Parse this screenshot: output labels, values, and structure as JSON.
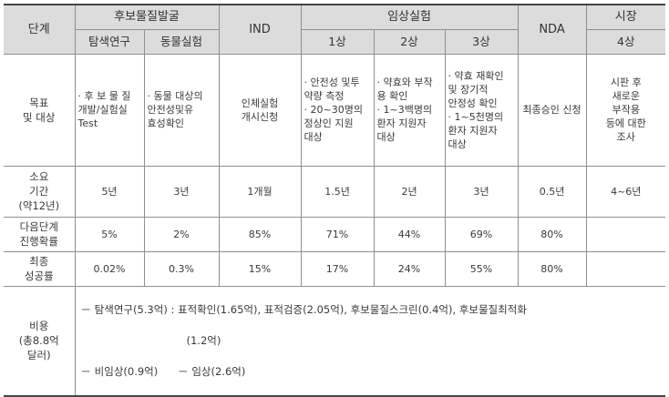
{
  "header": {
    "stage": "단계",
    "candidate_group": "후보물질발굴",
    "exploration": "탐색연구",
    "animal": "동물실험",
    "ind": "IND",
    "clinical_group": "임상실험",
    "phase1": "1상",
    "phase2": "2상",
    "phase3": "3상",
    "nda": "NDA",
    "market_group": "시장",
    "phase4": "4상"
  },
  "rows": {
    "goal": {
      "label": "목표\n및 대상",
      "exploration": "· 후 보 물 질\n개발/실험실\nTest",
      "animal": "· 동물 대상의\n안전성및유\n효성확인",
      "ind": "인체실험\n개시신청",
      "phase1": "· 안전성 및투\n약량 측정\n· 20~30명의\n정상인 지원\n대상",
      "phase2": "· 약효와 부작\n용 확인\n· 1~3백명의\n환자 지원자\n대상",
      "phase3": "· 약효 재확인\n및 장기적\n안정성 확인\n· 1~5천명의\n환자 지원자\n대상",
      "nda": "최종승인 신청",
      "phase4": "시판 후\n새로운\n부작용\n등에 대한\n조사"
    },
    "duration": {
      "label": "소요\n기간\n(약12년)",
      "exploration": "5년",
      "animal": "3년",
      "ind": "1개월",
      "phase1": "1.5년",
      "phase2": "2년",
      "phase3": "3년",
      "nda": "0.5년",
      "phase4": "4~6년"
    },
    "next_prob": {
      "label": "다음단계\n진행확률",
      "exploration": "5%",
      "animal": "2%",
      "ind": "85%",
      "phase1": "71%",
      "phase2": "44%",
      "phase3": "69%",
      "nda": "80%",
      "phase4": ""
    },
    "final_success": {
      "label": "최종\n성공률",
      "exploration": "0.02%",
      "animal": "0.3%",
      "ind": "15%",
      "phase1": "17%",
      "phase2": "24%",
      "phase3": "55%",
      "nda": "80%",
      "phase4": ""
    },
    "cost": {
      "label": "비용\n(총8.8억\n달러)",
      "line1": "－ 탐색연구(5.3억) : 표적확인(1.65억), 표적검증(2.05억), 후보물질스크린(0.4억), 후보물질최적화",
      "line2": "(1.2억)",
      "line3": "－ 비임상(0.9억)      － 임상(2.6억)"
    }
  }
}
